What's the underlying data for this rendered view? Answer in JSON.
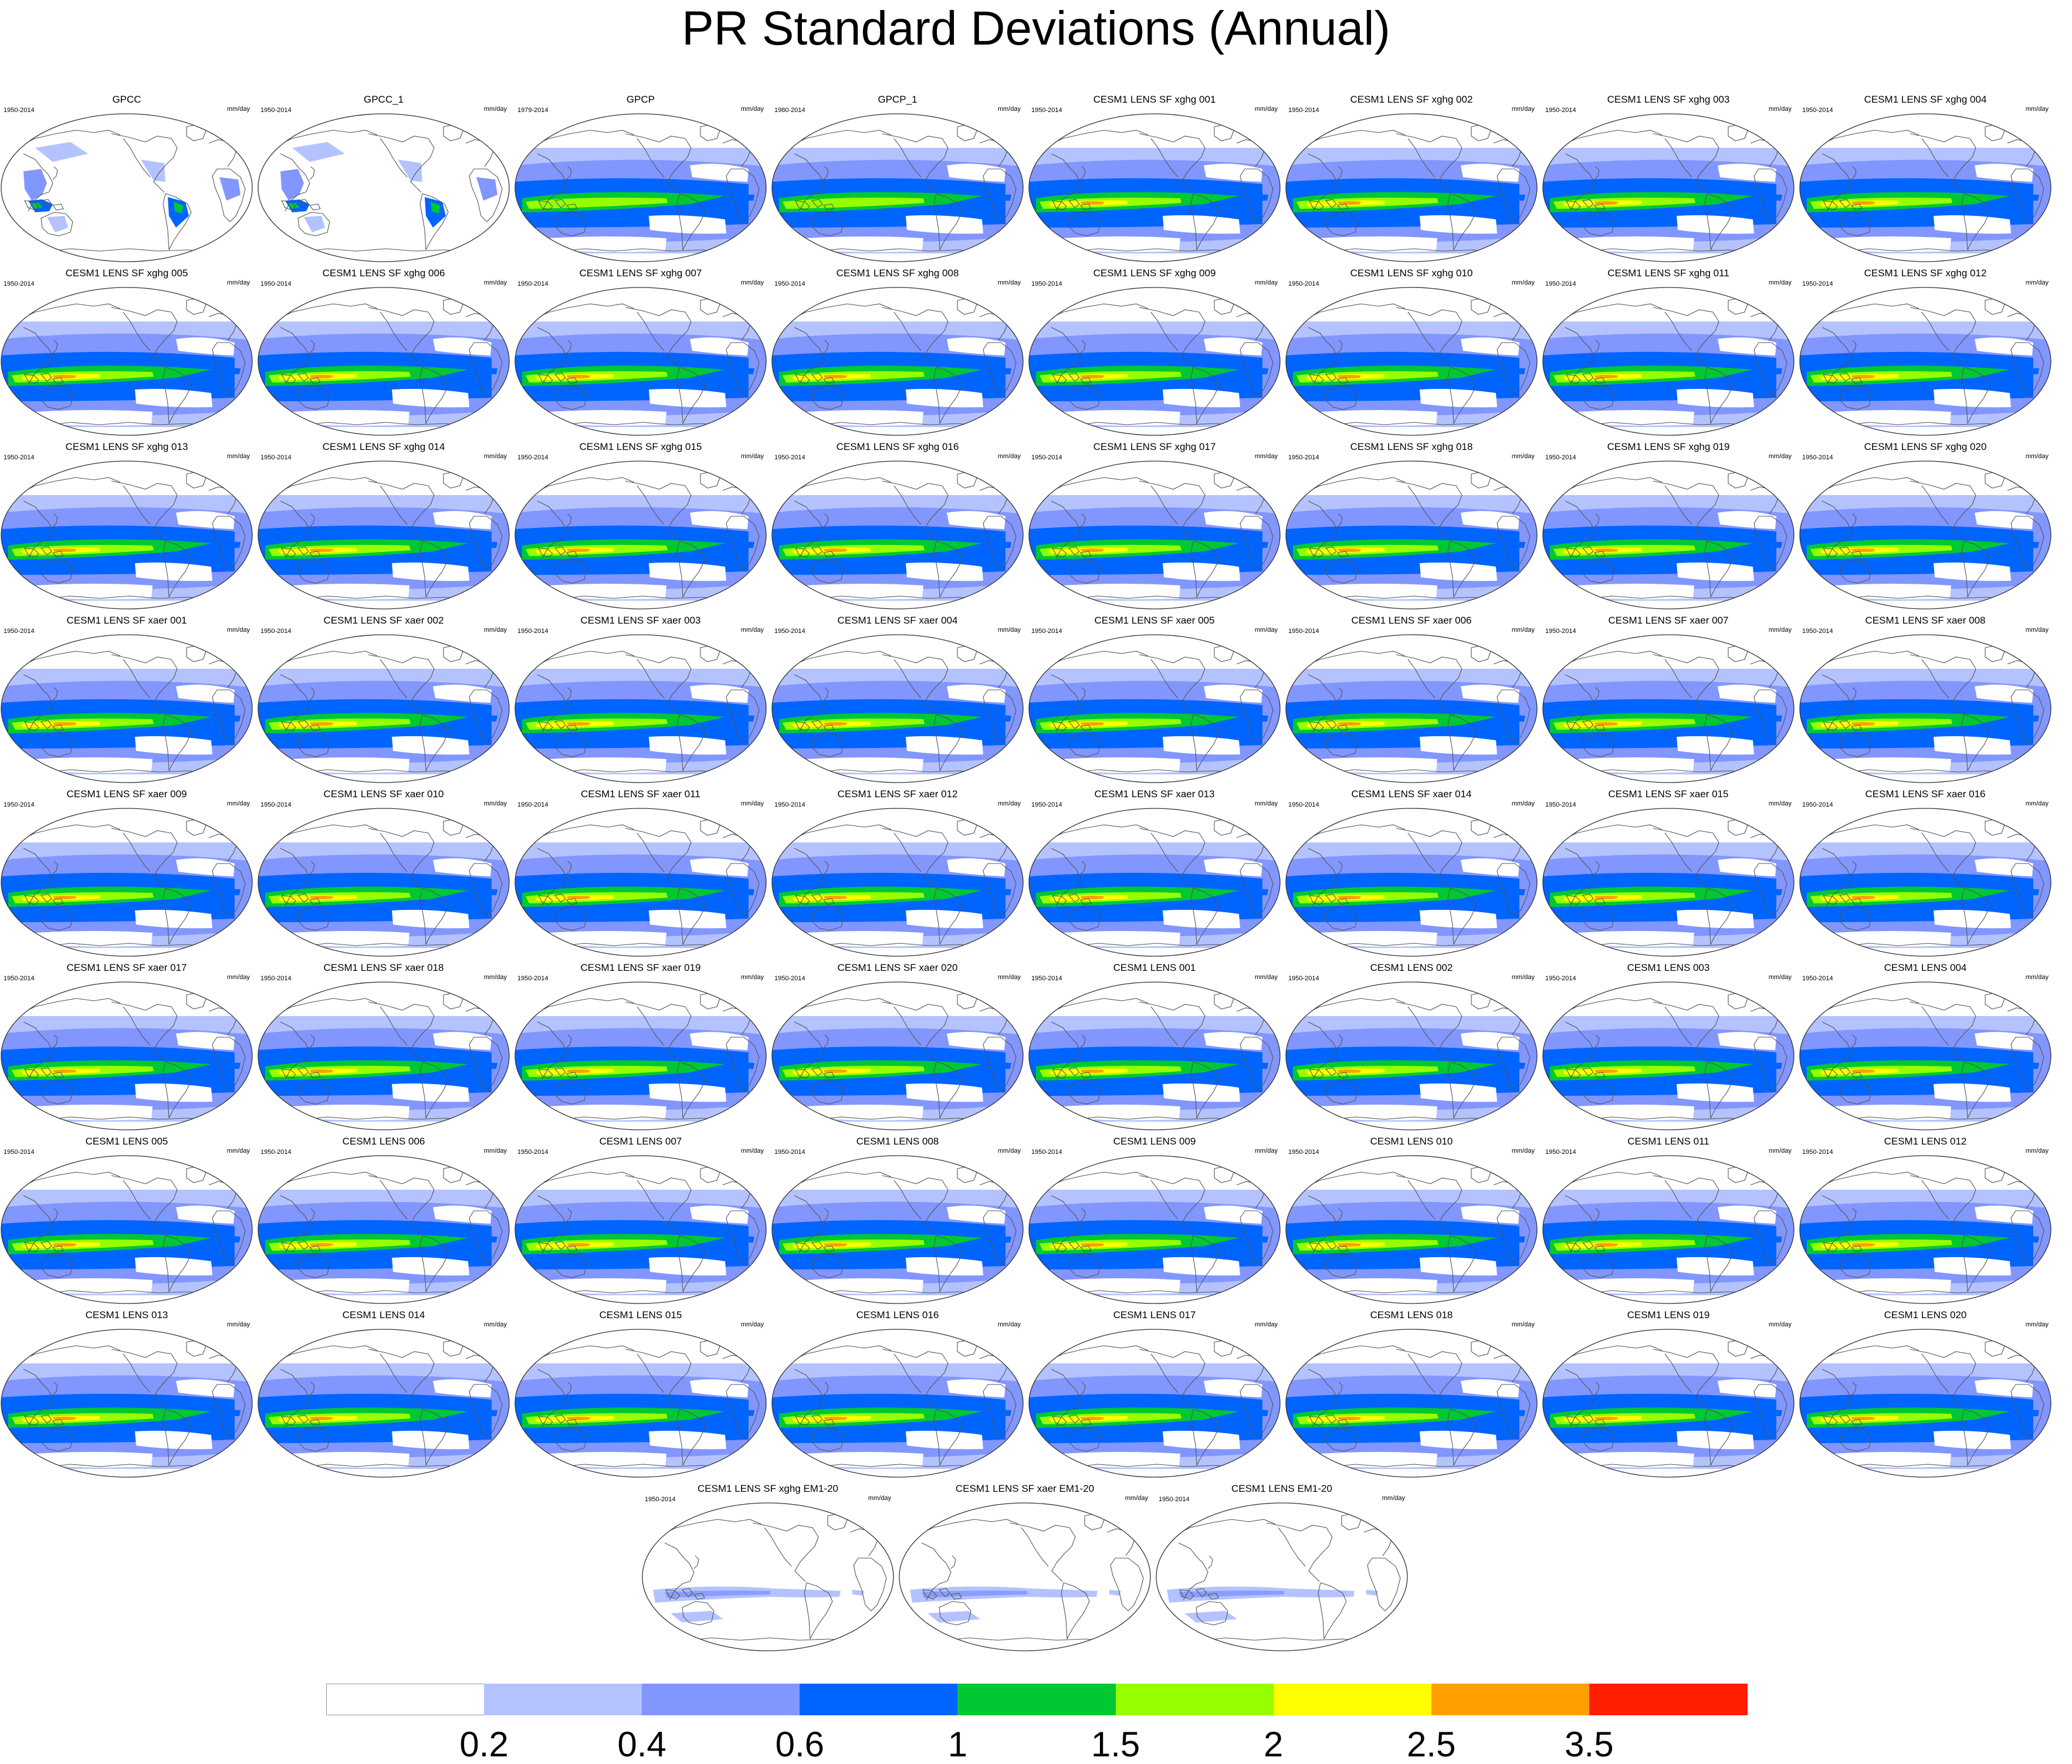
{
  "title": "PR Standard Deviations (Annual)",
  "units": "mm/day",
  "colorbar": {
    "colors": [
      "#ffffff",
      "#b4c3ff",
      "#8296ff",
      "#0064ff",
      "#00c832",
      "#96ff00",
      "#ffff00",
      "#ffa000",
      "#ff1e00"
    ],
    "labels": [
      "0.2",
      "0.4",
      "0.6",
      "1",
      "1.5",
      "2",
      "2.5",
      "3.5"
    ]
  },
  "panels": [
    {
      "title": "GPCC",
      "years": "1950-2014",
      "style": "land"
    },
    {
      "title": "GPCC_1",
      "years": "1950-2014",
      "style": "land"
    },
    {
      "title": "GPCP",
      "years": "1979-2014",
      "style": "obs"
    },
    {
      "title": "GPCP_1",
      "years": "1980-2014",
      "style": "obs"
    },
    {
      "title": "CESM1 LENS SF xghg 001",
      "years": "1950-2014",
      "style": "model"
    },
    {
      "title": "CESM1 LENS SF xghg 002",
      "years": "1950-2014",
      "style": "model"
    },
    {
      "title": "CESM1 LENS SF xghg 003",
      "years": "1950-2014",
      "style": "model"
    },
    {
      "title": "CESM1 LENS SF xghg 004",
      "years": "1950-2014",
      "style": "model"
    },
    {
      "title": "CESM1 LENS SF xghg 005",
      "years": "1950-2014",
      "style": "model"
    },
    {
      "title": "CESM1 LENS SF xghg 006",
      "years": "1950-2014",
      "style": "model"
    },
    {
      "title": "CESM1 LENS SF xghg 007",
      "years": "1950-2014",
      "style": "model"
    },
    {
      "title": "CESM1 LENS SF xghg 008",
      "years": "1950-2014",
      "style": "model"
    },
    {
      "title": "CESM1 LENS SF xghg 009",
      "years": "1950-2014",
      "style": "model"
    },
    {
      "title": "CESM1 LENS SF xghg 010",
      "years": "1950-2014",
      "style": "model"
    },
    {
      "title": "CESM1 LENS SF xghg 011",
      "years": "1950-2014",
      "style": "model"
    },
    {
      "title": "CESM1 LENS SF xghg 012",
      "years": "1950-2014",
      "style": "model"
    },
    {
      "title": "CESM1 LENS SF xghg 013",
      "years": "1950-2014",
      "style": "model"
    },
    {
      "title": "CESM1 LENS SF xghg 014",
      "years": "1950-2014",
      "style": "model"
    },
    {
      "title": "CESM1 LENS SF xghg 015",
      "years": "1950-2014",
      "style": "model"
    },
    {
      "title": "CESM1 LENS SF xghg 016",
      "years": "1950-2014",
      "style": "model"
    },
    {
      "title": "CESM1 LENS SF xghg 017",
      "years": "1950-2014",
      "style": "model"
    },
    {
      "title": "CESM1 LENS SF xghg 018",
      "years": "1950-2014",
      "style": "model"
    },
    {
      "title": "CESM1 LENS SF xghg 019",
      "years": "1950-2014",
      "style": "model"
    },
    {
      "title": "CESM1 LENS SF xghg 020",
      "years": "1950-2014",
      "style": "model"
    },
    {
      "title": "CESM1 LENS SF xaer 001",
      "years": "1950-2014",
      "style": "model"
    },
    {
      "title": "CESM1 LENS SF xaer 002",
      "years": "1950-2014",
      "style": "model"
    },
    {
      "title": "CESM1 LENS SF xaer 003",
      "years": "1950-2014",
      "style": "model"
    },
    {
      "title": "CESM1 LENS SF xaer 004",
      "years": "1950-2014",
      "style": "model"
    },
    {
      "title": "CESM1 LENS SF xaer 005",
      "years": "1950-2014",
      "style": "model"
    },
    {
      "title": "CESM1 LENS SF xaer 006",
      "years": "1950-2014",
      "style": "model"
    },
    {
      "title": "CESM1 LENS SF xaer 007",
      "years": "1950-2014",
      "style": "model"
    },
    {
      "title": "CESM1 LENS SF xaer 008",
      "years": "1950-2014",
      "style": "model"
    },
    {
      "title": "CESM1 LENS SF xaer 009",
      "years": "1950-2014",
      "style": "model"
    },
    {
      "title": "CESM1 LENS SF xaer 010",
      "years": "1950-2014",
      "style": "model"
    },
    {
      "title": "CESM1 LENS SF xaer 011",
      "years": "1950-2014",
      "style": "model"
    },
    {
      "title": "CESM1 LENS SF xaer 012",
      "years": "1950-2014",
      "style": "model"
    },
    {
      "title": "CESM1 LENS SF xaer 013",
      "years": "1950-2014",
      "style": "model"
    },
    {
      "title": "CESM1 LENS SF xaer 014",
      "years": "1950-2014",
      "style": "model"
    },
    {
      "title": "CESM1 LENS SF xaer 015",
      "years": "1950-2014",
      "style": "model"
    },
    {
      "title": "CESM1 LENS SF xaer 016",
      "years": "1950-2014",
      "style": "model"
    },
    {
      "title": "CESM1 LENS SF xaer 017",
      "years": "1950-2014",
      "style": "model"
    },
    {
      "title": "CESM1 LENS SF xaer 018",
      "years": "1950-2014",
      "style": "model"
    },
    {
      "title": "CESM1 LENS SF xaer 019",
      "years": "1950-2014",
      "style": "model"
    },
    {
      "title": "CESM1 LENS SF xaer 020",
      "years": "1950-2014",
      "style": "model"
    },
    {
      "title": "CESM1 LENS 001",
      "years": "1950-2014",
      "style": "model"
    },
    {
      "title": "CESM1 LENS 002",
      "years": "1950-2014",
      "style": "model"
    },
    {
      "title": "CESM1 LENS 003",
      "years": "1950-2014",
      "style": "model"
    },
    {
      "title": "CESM1 LENS 004",
      "years": "1950-2014",
      "style": "model"
    },
    {
      "title": "CESM1 LENS 005",
      "years": "1950-2014",
      "style": "model"
    },
    {
      "title": "CESM1 LENS 006",
      "years": "1950-2014",
      "style": "model"
    },
    {
      "title": "CESM1 LENS 007",
      "years": "1950-2014",
      "style": "model"
    },
    {
      "title": "CESM1 LENS 008",
      "years": "1950-2014",
      "style": "model"
    },
    {
      "title": "CESM1 LENS 009",
      "years": "1950-2014",
      "style": "model"
    },
    {
      "title": "CESM1 LENS 010",
      "years": "1950-2014",
      "style": "model"
    },
    {
      "title": "CESM1 LENS 011",
      "years": "1950-2014",
      "style": "model"
    },
    {
      "title": "CESM1 LENS 012",
      "years": "1950-2014",
      "style": "model"
    },
    {
      "title": "CESM1 LENS 013",
      "years": "",
      "style": "model"
    },
    {
      "title": "CESM1 LENS 014",
      "years": "",
      "style": "model"
    },
    {
      "title": "CESM1 LENS 015",
      "years": "",
      "style": "model"
    },
    {
      "title": "CESM1 LENS 016",
      "years": "",
      "style": "model"
    },
    {
      "title": "CESM1 LENS 017",
      "years": "",
      "style": "model"
    },
    {
      "title": "CESM1 LENS 018",
      "years": "",
      "style": "model"
    },
    {
      "title": "CESM1 LENS 019",
      "years": "",
      "style": "model"
    },
    {
      "title": "CESM1 LENS 020",
      "years": "",
      "style": "model"
    },
    {
      "title": "CESM1 LENS SF xghg EM1-20",
      "years": "1950-2014",
      "style": "mean"
    },
    {
      "title": "CESM1 LENS SF xaer EM1-20",
      "years": "",
      "style": "mean"
    },
    {
      "title": "CESM1 LENS EM1-20",
      "years": "1950-2014",
      "style": "mean"
    }
  ]
}
